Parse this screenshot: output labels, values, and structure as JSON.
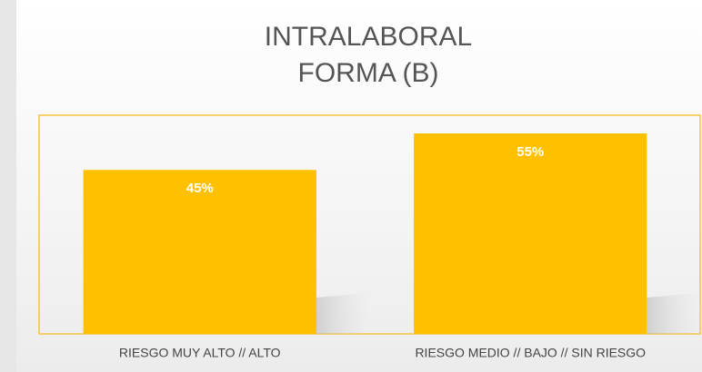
{
  "chart_data": {
    "type": "bar",
    "title": [
      "INTRALABORAL",
      "FORMA (B)"
    ],
    "categories": [
      "RIESGO MUY ALTO // ALTO",
      "RIESGO MEDIO // BAJO // SIN RIESGO"
    ],
    "values": [
      45,
      55
    ],
    "value_labels": [
      "45%",
      "55%"
    ],
    "color": "#ffc000",
    "ylim": [
      0,
      60
    ]
  }
}
